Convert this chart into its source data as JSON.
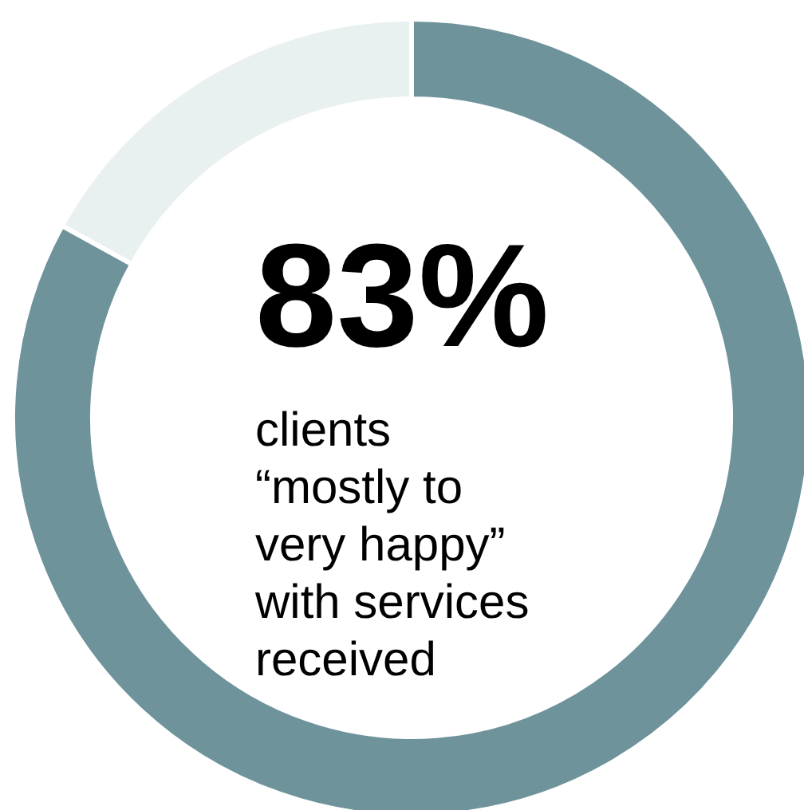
{
  "chart_data": {
    "type": "donut",
    "categories": [
      null,
      null
    ],
    "values": [
      83,
      17
    ],
    "colors": [
      "#6e939b",
      "#e9f0f0"
    ],
    "value_labels": [
      "83%",
      null
    ],
    "subtitle": "clients “mostly to very happy” with services received"
  }
}
